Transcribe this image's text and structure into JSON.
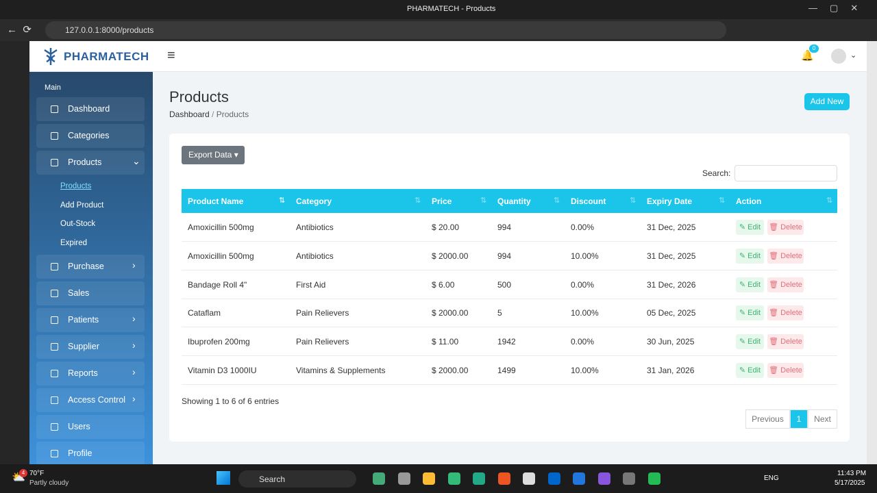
{
  "browser": {
    "title": "PHARMATECH - Products",
    "url": "127.0.0.1:8000/products"
  },
  "header": {
    "brand": "PHARMATECH",
    "notifications": "0"
  },
  "sidebar": {
    "section": "Main",
    "items": [
      "Dashboard",
      "Categories",
      "Products",
      "Purchase",
      "Sales",
      "Patients",
      "Supplier",
      "Reports",
      "Access Control",
      "Users",
      "Profile"
    ],
    "submenu": [
      "Products",
      "Add Product",
      "Out-Stock",
      "Expired"
    ]
  },
  "page": {
    "title": "Products",
    "breadcrumb": [
      "Dashboard",
      "Products"
    ],
    "add_button": "Add New",
    "export_button": "Export Data",
    "search_label": "Search:"
  },
  "table": {
    "columns": [
      "Product Name",
      "Category",
      "Price",
      "Quantity",
      "Discount",
      "Expiry Date",
      "Action"
    ],
    "rows": [
      [
        "Amoxicillin 500mg",
        "Antibiotics",
        "$ 20.00",
        "994",
        "0.00%",
        "31 Dec, 2025"
      ],
      [
        "Amoxicillin 500mg",
        "Antibiotics",
        "$ 2000.00",
        "994",
        "10.00%",
        "31 Dec, 2025"
      ],
      [
        "Bandage Roll 4\"",
        "First Aid",
        "$ 6.00",
        "500",
        "0.00%",
        "31 Dec, 2026"
      ],
      [
        "Cataflam",
        "Pain Relievers",
        "$ 2000.00",
        "5",
        "10.00%",
        "05 Dec, 2025"
      ],
      [
        "Ibuprofen 200mg",
        "Pain Relievers",
        "$ 11.00",
        "1942",
        "0.00%",
        "30 Jun, 2025"
      ],
      [
        "Vitamin D3 1000IU",
        "Vitamins & Supplements",
        "$ 2000.00",
        "1499",
        "10.00%",
        "31 Jan, 2026"
      ]
    ],
    "actions": {
      "edit": "Edit",
      "delete": "Delete"
    },
    "info": "Showing 1 to 6 of 6 entries",
    "pagination": [
      "Previous",
      "1",
      "Next"
    ]
  },
  "taskbar": {
    "temperature": "70°F",
    "weather": "Partly cloudy",
    "weather_badge": "4",
    "search": "Search",
    "language": "ENG",
    "time": "11:43 PM",
    "date": "5/17/2025"
  }
}
